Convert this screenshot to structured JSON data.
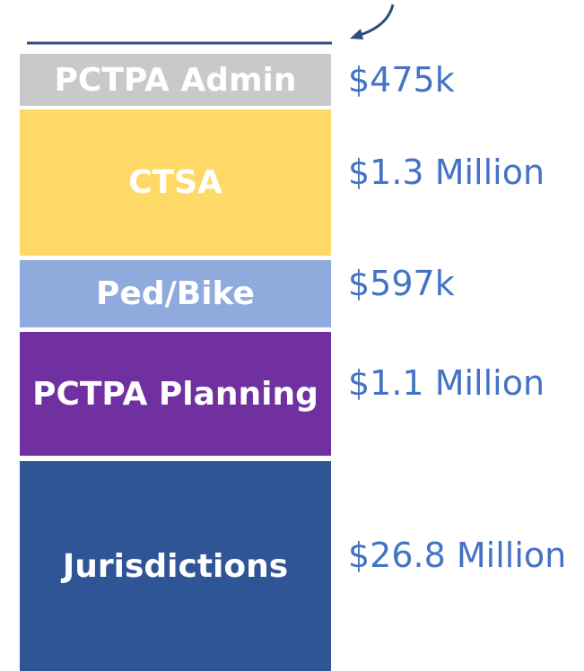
{
  "blocks": [
    {
      "label": "PCTPA Admin",
      "amount": "$475k",
      "color": "#c9c9c9"
    },
    {
      "label": "CTSA",
      "amount": "$1.3 Million",
      "color": "#fed966"
    },
    {
      "label": "Ped/Bike",
      "amount": "$597k",
      "color": "#8faadc"
    },
    {
      "label": "PCTPA Planning",
      "amount": "$1.1 Million",
      "color": "#7030a0"
    },
    {
      "label": "Jurisdictions",
      "amount": "$26.8 Million",
      "color": "#2f5597"
    }
  ]
}
